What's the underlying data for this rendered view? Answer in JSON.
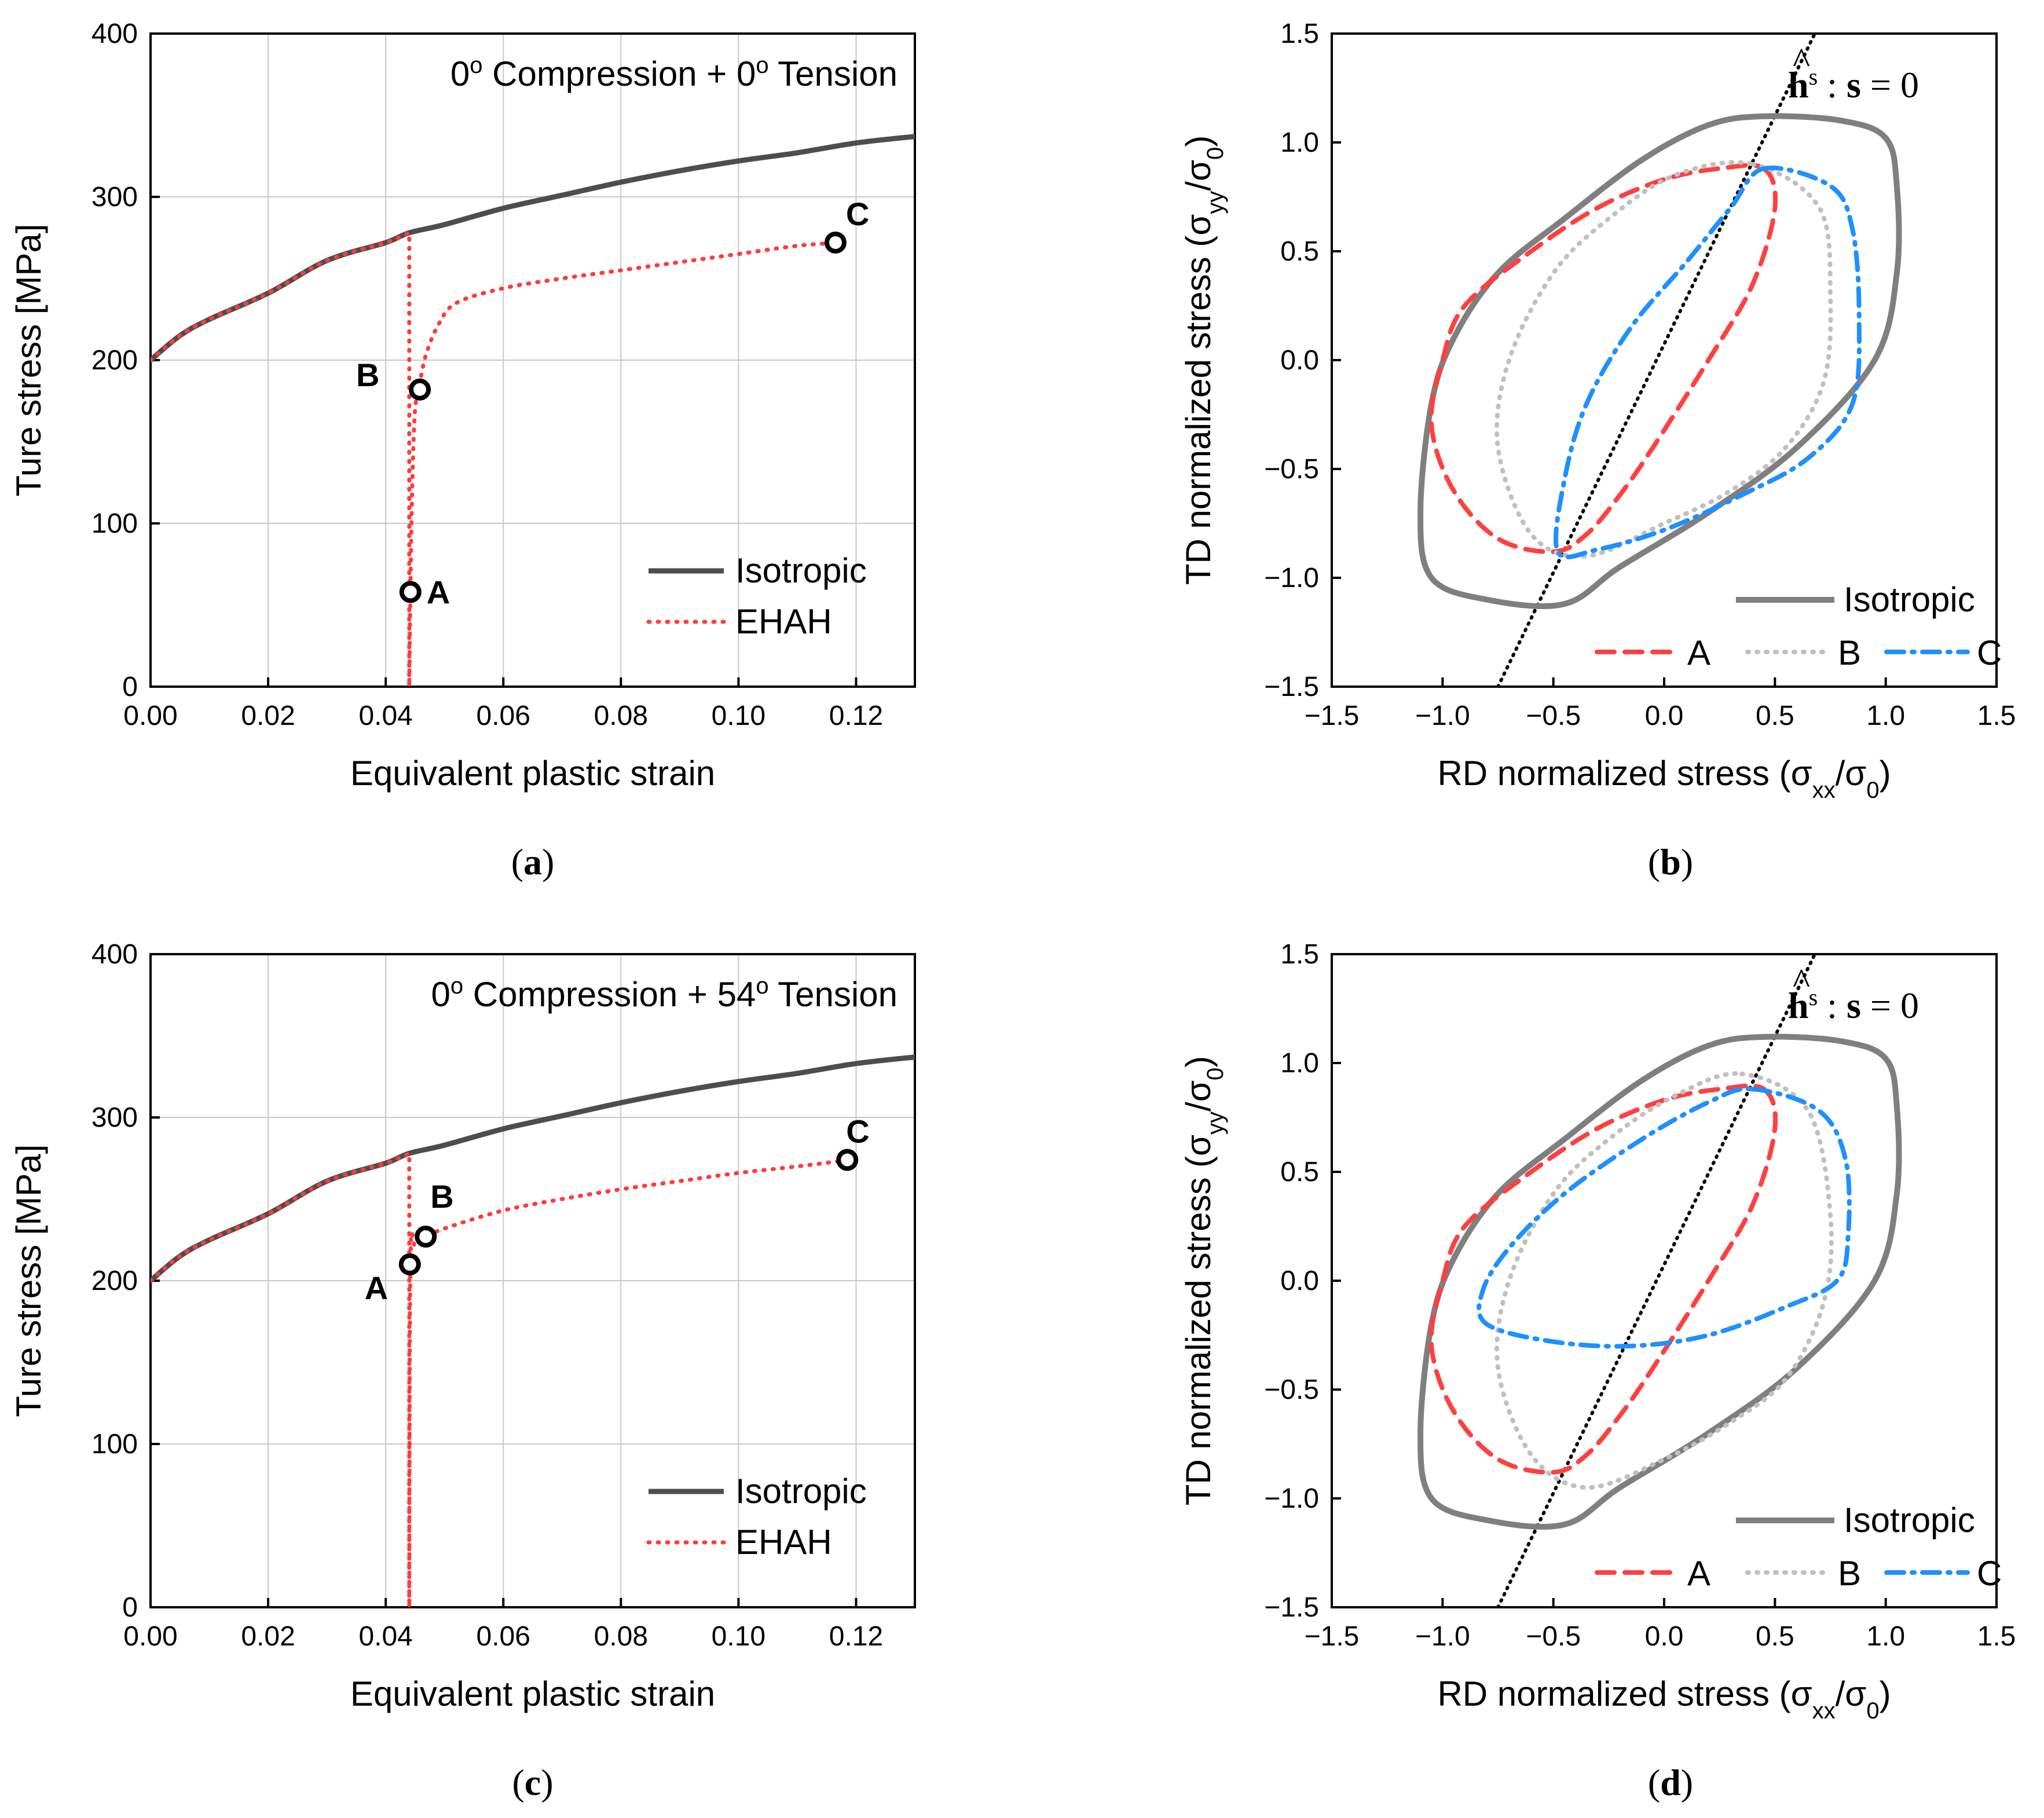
{
  "figure": {
    "panel_labels": [
      "a",
      "b",
      "c",
      "d"
    ]
  },
  "chart_data": [
    {
      "panel": "a",
      "type": "line",
      "title": "0° Compression + 0° Tension",
      "title_parts": {
        "pre": "0",
        "sup1": "o",
        "mid": " Compression + 0",
        "sup2": "o",
        "post": " Tension"
      },
      "xlabel": "Equivalent plastic strain",
      "ylabel": "Ture stress [MPa]",
      "xlim": [
        0,
        0.13
      ],
      "ylim": [
        0,
        400
      ],
      "xticks": [
        0.0,
        0.02,
        0.04,
        0.06,
        0.08,
        0.1,
        0.12
      ],
      "xtick_labels": [
        "0.00",
        "0.02",
        "0.04",
        "0.06",
        "0.08",
        "0.10",
        "0.12"
      ],
      "yticks": [
        0,
        100,
        200,
        300,
        400
      ],
      "ytick_labels": [
        "0",
        "100",
        "200",
        "300",
        "400"
      ],
      "grid": true,
      "legend": {
        "position": "bottom-right",
        "entries": [
          "Isotropic",
          "EHAH"
        ]
      },
      "colors": {
        "isotropic": "#4d4d4d",
        "ehah": "#ff3b3b"
      },
      "series": [
        {
          "name": "Isotropic",
          "style": "solid",
          "x": [
            0,
            0.005,
            0.01,
            0.02,
            0.03,
            0.04,
            0.044,
            0.05,
            0.06,
            0.07,
            0.08,
            0.09,
            0.1,
            0.11,
            0.12,
            0.13
          ],
          "values": [
            200,
            215,
            225,
            241,
            261,
            272,
            278,
            283,
            293,
            301,
            309,
            316,
            322,
            327,
            333,
            337
          ]
        },
        {
          "name": "EHAH",
          "style": "dotted",
          "x": [
            0,
            0.005,
            0.01,
            0.02,
            0.03,
            0.04,
            0.044,
            0.044,
            0.0442,
            0.0445,
            0.045,
            0.046,
            0.047,
            0.049,
            0.052,
            0.06,
            0.07,
            0.08,
            0.09,
            0.1,
            0.11,
            0.117
          ],
          "values": [
            200,
            215,
            225,
            241,
            261,
            272,
            278,
            0,
            60,
            120,
            170,
            190,
            205,
            222,
            235,
            244,
            250,
            255,
            260,
            265,
            270,
            272
          ]
        }
      ],
      "points": [
        {
          "label": "A",
          "x": 0.0442,
          "y": 58
        },
        {
          "label": "B",
          "x": 0.0458,
          "y": 182
        },
        {
          "label": "C",
          "x": 0.1165,
          "y": 272
        }
      ]
    },
    {
      "panel": "b",
      "type": "line",
      "xlabel": "RD normalized stress (σxx/σ0)",
      "xlabel_parts": {
        "pre": "RD normalized stress (σ",
        "sub1": "xx",
        "mid": "/σ",
        "sub2": "0",
        "post": ")"
      },
      "ylabel": "TD normalized stress (σyy/σ0)",
      "ylabel_parts": {
        "pre": "TD normalized stress (σ",
        "sub1": "yy",
        "mid": "/σ",
        "sub2": "0",
        "post": ")"
      },
      "xlim": [
        -1.5,
        1.5
      ],
      "ylim": [
        -1.5,
        1.5
      ],
      "xticks": [
        -1.5,
        -1.0,
        -0.5,
        0.0,
        0.5,
        1.0,
        1.5
      ],
      "xtick_labels": [
        "−1.5",
        "−1.0",
        "−0.5",
        "0.0",
        "0.5",
        "1.0",
        "1.5"
      ],
      "yticks": [
        -1.5,
        -1.0,
        -0.5,
        0.0,
        0.5,
        1.0,
        1.5
      ],
      "ytick_labels": [
        "−1.5",
        "−1.0",
        "−0.5",
        "0.0",
        "0.5",
        "1.0",
        "1.5"
      ],
      "grid": false,
      "annotation": {
        "vec": "h",
        "hat": "^",
        "sup": "s",
        "rest": " : ",
        "vec2": "s",
        "eq": " = 0"
      },
      "legend": {
        "position": "bottom-right",
        "entries": [
          "Isotropic",
          "A",
          "B",
          "C"
        ]
      },
      "colors": {
        "isotropic": "#7f7f7f",
        "A": "#ff4040",
        "B": "#c0c0c0",
        "C": "#1e90ff",
        "line": "#000000"
      },
      "line": {
        "x": [
          -0.75,
          0.68
        ],
        "y": [
          -1.5,
          1.5
        ]
      },
      "series": [
        {
          "name": "Isotropic",
          "style": "solid",
          "curve": "iso",
          "x": [
            0.45,
            0.8,
            1.0,
            1.05,
            1.05,
            0.95,
            0.6,
            0.2,
            -0.2,
            -0.45,
            -0.8,
            -1.05,
            -1.1,
            -1.05,
            -0.95,
            -0.75,
            -0.45,
            -0.1,
            0.2,
            0.45
          ],
          "values": [
            1.12,
            1.1,
            1.02,
            0.8,
            0.4,
            0.0,
            -0.4,
            -0.7,
            -0.95,
            -1.12,
            -1.1,
            -1.0,
            -0.7,
            -0.2,
            0.1,
            0.4,
            0.65,
            0.92,
            1.08,
            1.12
          ]
        },
        {
          "name": "A",
          "style": "dashed",
          "x": [
            0.45,
            0.5,
            0.4,
            0.2,
            -0.05,
            -0.2,
            -0.35,
            -0.5,
            -0.75,
            -0.95,
            -1.05,
            -1.0,
            -0.9,
            -0.6,
            -0.3,
            0.0,
            0.25,
            0.45
          ],
          "values": [
            0.88,
            0.7,
            0.35,
            0.0,
            -0.4,
            -0.62,
            -0.8,
            -0.88,
            -0.82,
            -0.6,
            -0.3,
            0.0,
            0.25,
            0.5,
            0.7,
            0.83,
            0.88,
            0.88
          ]
        },
        {
          "name": "B",
          "style": "dotted",
          "x": [
            0.4,
            0.7,
            0.75,
            0.72,
            0.55,
            0.3,
            0.0,
            -0.35,
            -0.6,
            -0.75,
            -0.7,
            -0.5,
            -0.25,
            0.05,
            0.4
          ],
          "values": [
            0.9,
            0.7,
            0.3,
            -0.1,
            -0.4,
            -0.6,
            -0.75,
            -0.9,
            -0.8,
            -0.4,
            0.0,
            0.4,
            0.65,
            0.85,
            0.9
          ]
        },
        {
          "name": "C",
          "style": "dashdot",
          "x": [
            0.45,
            0.75,
            0.85,
            0.88,
            0.85,
            0.65,
            0.35,
            0.0,
            -0.3,
            -0.48,
            -0.45,
            -0.35,
            -0.15,
            0.1,
            0.3,
            0.45
          ],
          "values": [
            0.88,
            0.8,
            0.6,
            0.2,
            -0.2,
            -0.45,
            -0.62,
            -0.78,
            -0.87,
            -0.88,
            -0.55,
            -0.2,
            0.15,
            0.45,
            0.7,
            0.88
          ]
        }
      ]
    },
    {
      "panel": "c",
      "type": "line",
      "title": "0° Compression + 54° Tension",
      "title_parts": {
        "pre": "0",
        "sup1": "o",
        "mid": " Compression + 54",
        "sup2": "o",
        "post": " Tension"
      },
      "xlabel": "Equivalent plastic strain",
      "ylabel": "Ture stress [MPa]",
      "xlim": [
        0,
        0.13
      ],
      "ylim": [
        0,
        400
      ],
      "xticks": [
        0.0,
        0.02,
        0.04,
        0.06,
        0.08,
        0.1,
        0.12
      ],
      "xtick_labels": [
        "0.00",
        "0.02",
        "0.04",
        "0.06",
        "0.08",
        "0.10",
        "0.12"
      ],
      "yticks": [
        0,
        100,
        200,
        300,
        400
      ],
      "ytick_labels": [
        "0",
        "100",
        "200",
        "300",
        "400"
      ],
      "grid": true,
      "legend": {
        "position": "bottom-right",
        "entries": [
          "Isotropic",
          "EHAH"
        ]
      },
      "colors": {
        "isotropic": "#4d4d4d",
        "ehah": "#ff3b3b"
      },
      "series": [
        {
          "name": "Isotropic",
          "style": "solid",
          "x": [
            0,
            0.005,
            0.01,
            0.02,
            0.03,
            0.04,
            0.044,
            0.05,
            0.06,
            0.07,
            0.08,
            0.09,
            0.1,
            0.11,
            0.12,
            0.13
          ],
          "values": [
            200,
            215,
            225,
            241,
            261,
            272,
            278,
            283,
            293,
            301,
            309,
            316,
            322,
            327,
            333,
            337
          ]
        },
        {
          "name": "EHAH",
          "style": "dotted",
          "x": [
            0,
            0.005,
            0.01,
            0.02,
            0.03,
            0.04,
            0.044,
            0.044,
            0.0442,
            0.045,
            0.047,
            0.05,
            0.06,
            0.07,
            0.08,
            0.09,
            0.1,
            0.11,
            0.119
          ],
          "values": [
            200,
            215,
            225,
            241,
            261,
            272,
            278,
            0,
            210,
            222,
            227,
            232,
            243,
            250,
            256,
            261,
            266,
            270,
            274
          ]
        }
      ],
      "points": [
        {
          "label": "A",
          "x": 0.0441,
          "y": 210
        },
        {
          "label": "B",
          "x": 0.0468,
          "y": 227
        },
        {
          "label": "C",
          "x": 0.1185,
          "y": 274
        }
      ]
    },
    {
      "panel": "d",
      "type": "line",
      "xlabel": "RD normalized stress (σxx/σ0)",
      "xlabel_parts": {
        "pre": "RD normalized stress (σ",
        "sub1": "xx",
        "mid": "/σ",
        "sub2": "0",
        "post": ")"
      },
      "ylabel": "TD normalized stress (σyy/σ0)",
      "ylabel_parts": {
        "pre": "TD normalized stress (σ",
        "sub1": "yy",
        "mid": "/σ",
        "sub2": "0",
        "post": ")"
      },
      "xlim": [
        -1.5,
        1.5
      ],
      "ylim": [
        -1.5,
        1.5
      ],
      "xticks": [
        -1.5,
        -1.0,
        -0.5,
        0.0,
        0.5,
        1.0,
        1.5
      ],
      "xtick_labels": [
        "−1.5",
        "−1.0",
        "−0.5",
        "0.0",
        "0.5",
        "1.0",
        "1.5"
      ],
      "yticks": [
        -1.5,
        -1.0,
        -0.5,
        0.0,
        0.5,
        1.0,
        1.5
      ],
      "ytick_labels": [
        "−1.5",
        "−1.0",
        "−0.5",
        "0.0",
        "0.5",
        "1.0",
        "1.5"
      ],
      "grid": false,
      "annotation": {
        "vec": "h",
        "hat": "^",
        "sup": "s",
        "rest": " : ",
        "vec2": "s",
        "eq": " = 0"
      },
      "legend": {
        "position": "bottom-right",
        "entries": [
          "Isotropic",
          "A",
          "B",
          "C"
        ]
      },
      "colors": {
        "isotropic": "#7f7f7f",
        "A": "#ff4040",
        "B": "#c0c0c0",
        "C": "#1e90ff",
        "line": "#000000"
      },
      "line": {
        "x": [
          -0.75,
          0.68
        ],
        "y": [
          -1.5,
          1.5
        ]
      },
      "series": [
        {
          "name": "Isotropic",
          "style": "solid",
          "x": [
            0.45,
            0.8,
            1.0,
            1.05,
            1.05,
            0.95,
            0.6,
            0.2,
            -0.2,
            -0.45,
            -0.8,
            -1.05,
            -1.1,
            -1.05,
            -0.95,
            -0.75,
            -0.45,
            -0.1,
            0.2,
            0.45
          ],
          "values": [
            1.12,
            1.1,
            1.02,
            0.8,
            0.4,
            0.0,
            -0.4,
            -0.7,
            -0.95,
            -1.12,
            -1.1,
            -1.0,
            -0.7,
            -0.2,
            0.1,
            0.4,
            0.65,
            0.92,
            1.08,
            1.12
          ]
        },
        {
          "name": "A",
          "style": "dashed",
          "x": [
            0.45,
            0.5,
            0.4,
            0.2,
            -0.05,
            -0.2,
            -0.35,
            -0.5,
            -0.75,
            -0.95,
            -1.05,
            -1.0,
            -0.9,
            -0.6,
            -0.3,
            0.0,
            0.25,
            0.45
          ],
          "values": [
            0.88,
            0.7,
            0.35,
            0.0,
            -0.4,
            -0.62,
            -0.8,
            -0.88,
            -0.82,
            -0.6,
            -0.3,
            0.0,
            0.25,
            0.5,
            0.7,
            0.83,
            0.88,
            0.88
          ]
        },
        {
          "name": "B",
          "style": "dotted",
          "x": [
            0.35,
            0.65,
            0.75,
            0.72,
            0.55,
            0.3,
            0.0,
            -0.35,
            -0.6,
            -0.75,
            -0.7,
            -0.5,
            -0.25,
            0.05,
            0.35
          ],
          "values": [
            0.95,
            0.78,
            0.3,
            -0.1,
            -0.45,
            -0.65,
            -0.82,
            -0.95,
            -0.8,
            -0.4,
            0.0,
            0.4,
            0.65,
            0.85,
            0.95
          ]
        },
        {
          "name": "C",
          "style": "dashdot",
          "x": [
            0.4,
            0.7,
            0.82,
            0.83,
            0.78,
            0.55,
            0.2,
            -0.15,
            -0.5,
            -0.8,
            -0.82,
            -0.7,
            -0.45,
            -0.1,
            0.2,
            0.4
          ],
          "values": [
            0.88,
            0.78,
            0.55,
            0.2,
            0.0,
            -0.12,
            -0.25,
            -0.3,
            -0.28,
            -0.2,
            -0.05,
            0.15,
            0.4,
            0.65,
            0.82,
            0.88
          ]
        }
      ]
    }
  ]
}
